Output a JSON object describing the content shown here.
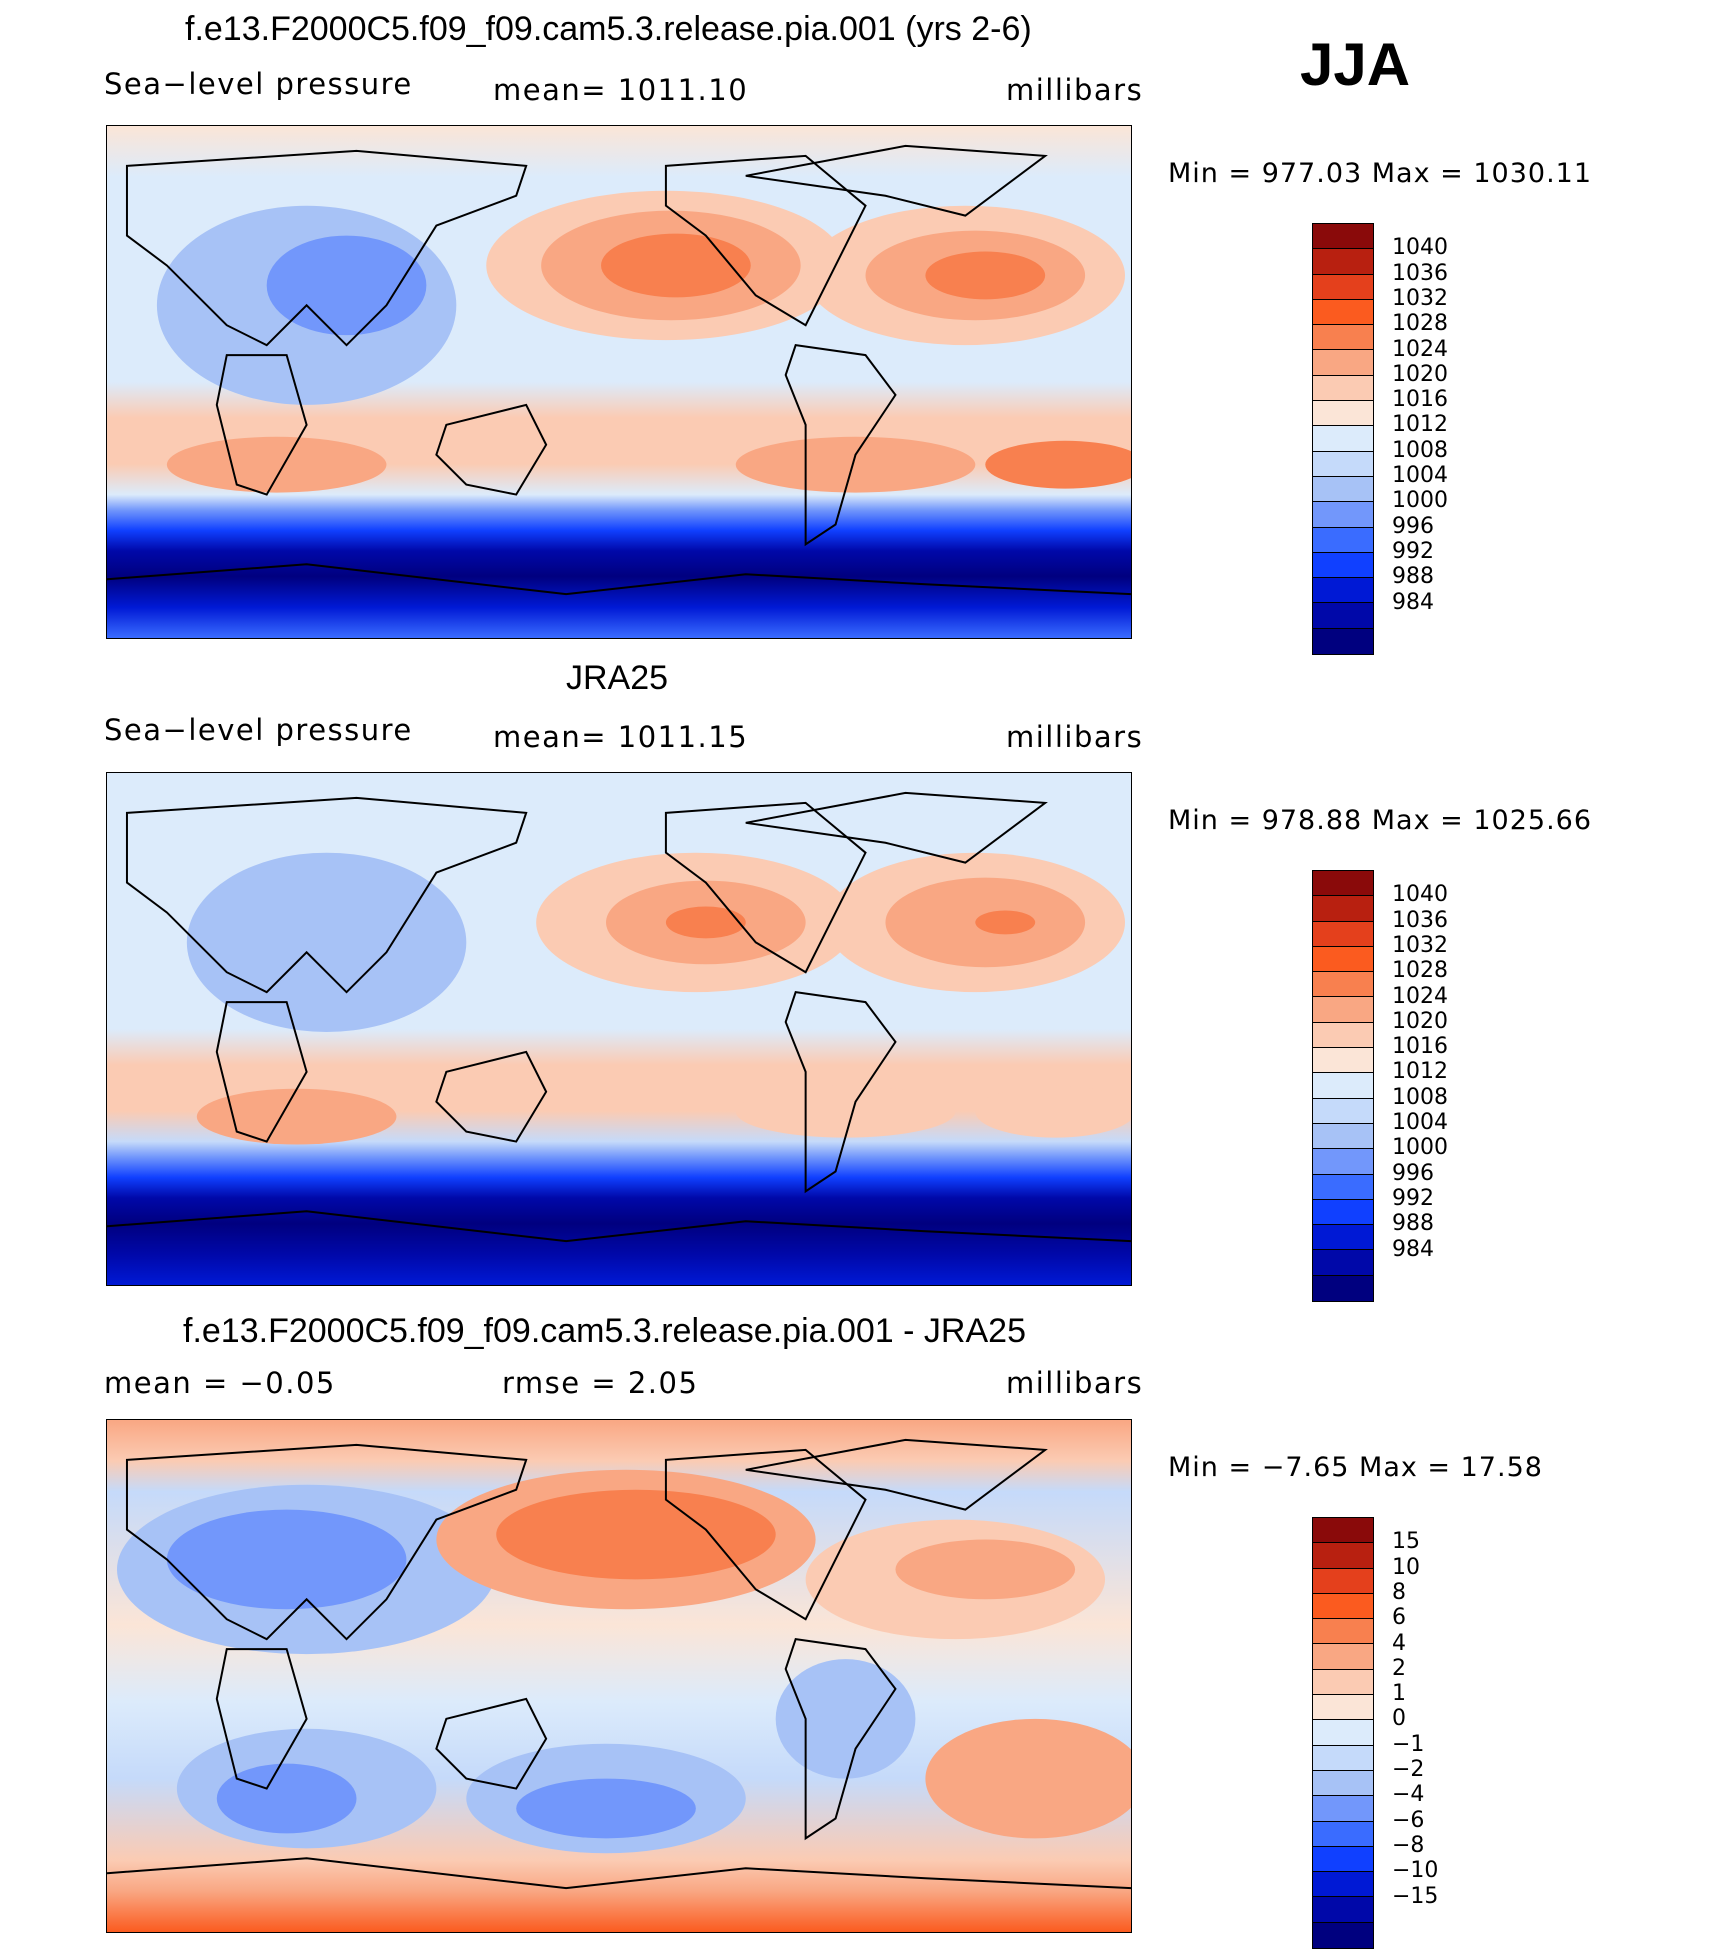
{
  "season": "JJA",
  "colors": {
    "bluewhite": [
      "#00007f",
      "#0008a9",
      "#0019d5",
      "#1040ff",
      "#3a6cff",
      "#7297fb",
      "#a7c2f6",
      "#c5dafa",
      "#dcebfb"
    ],
    "warm": [
      "#fbe5d7",
      "#fbcbb3",
      "#f9a783",
      "#f8804f",
      "#fb5b1f",
      "#e4401c",
      "#b82010",
      "#8a0a0a"
    ],
    "diff": [
      "#00007f",
      "#0008a9",
      "#0019d5",
      "#1040ff",
      "#3a6cff",
      "#7297fb",
      "#a7c2f6",
      "#c5dafa",
      "#dcebfb",
      "#fbe5d7",
      "#fbcbb3",
      "#f9a783",
      "#f8804f",
      "#fb5b1f",
      "#e4401c",
      "#b82010",
      "#8a0a0a"
    ]
  },
  "panels": [
    {
      "title": "f.e13.F2000C5.f09_f09.cam5.3.release.pia.001 (yrs 2-6)",
      "left": "Sea−level pressure",
      "center": "mean=  1011.10",
      "right": "millibars",
      "minmax": "Min  =  977.03  Max  =  1030.11",
      "levels": [
        "1040",
        "1036",
        "1032",
        "1028",
        "1024",
        "1020",
        "1016",
        "1012",
        "1008",
        "1004",
        "1000",
        "996",
        "992",
        "988",
        "984"
      ]
    },
    {
      "title": "JRA25",
      "left": "Sea−level pressure",
      "center": "mean=  1011.15",
      "right": "millibars",
      "minmax": "Min  =  978.88  Max  =  1025.66",
      "levels": [
        "1040",
        "1036",
        "1032",
        "1028",
        "1024",
        "1020",
        "1016",
        "1012",
        "1008",
        "1004",
        "1000",
        "996",
        "992",
        "988",
        "984"
      ]
    },
    {
      "title": "f.e13.F2000C5.f09_f09.cam5.3.release.pia.001 - JRA25",
      "left": "mean  =    −0.05",
      "center": "rmse  =     2.05",
      "right": "millibars",
      "minmax": "Min  =    −7.65  Max  =    17.58",
      "levels": [
        "15",
        "10",
        "8",
        "6",
        "4",
        "2",
        "1",
        "0",
        "−1",
        "−2",
        "−4",
        "−6",
        "−8",
        "−10",
        "−15"
      ]
    }
  ]
}
